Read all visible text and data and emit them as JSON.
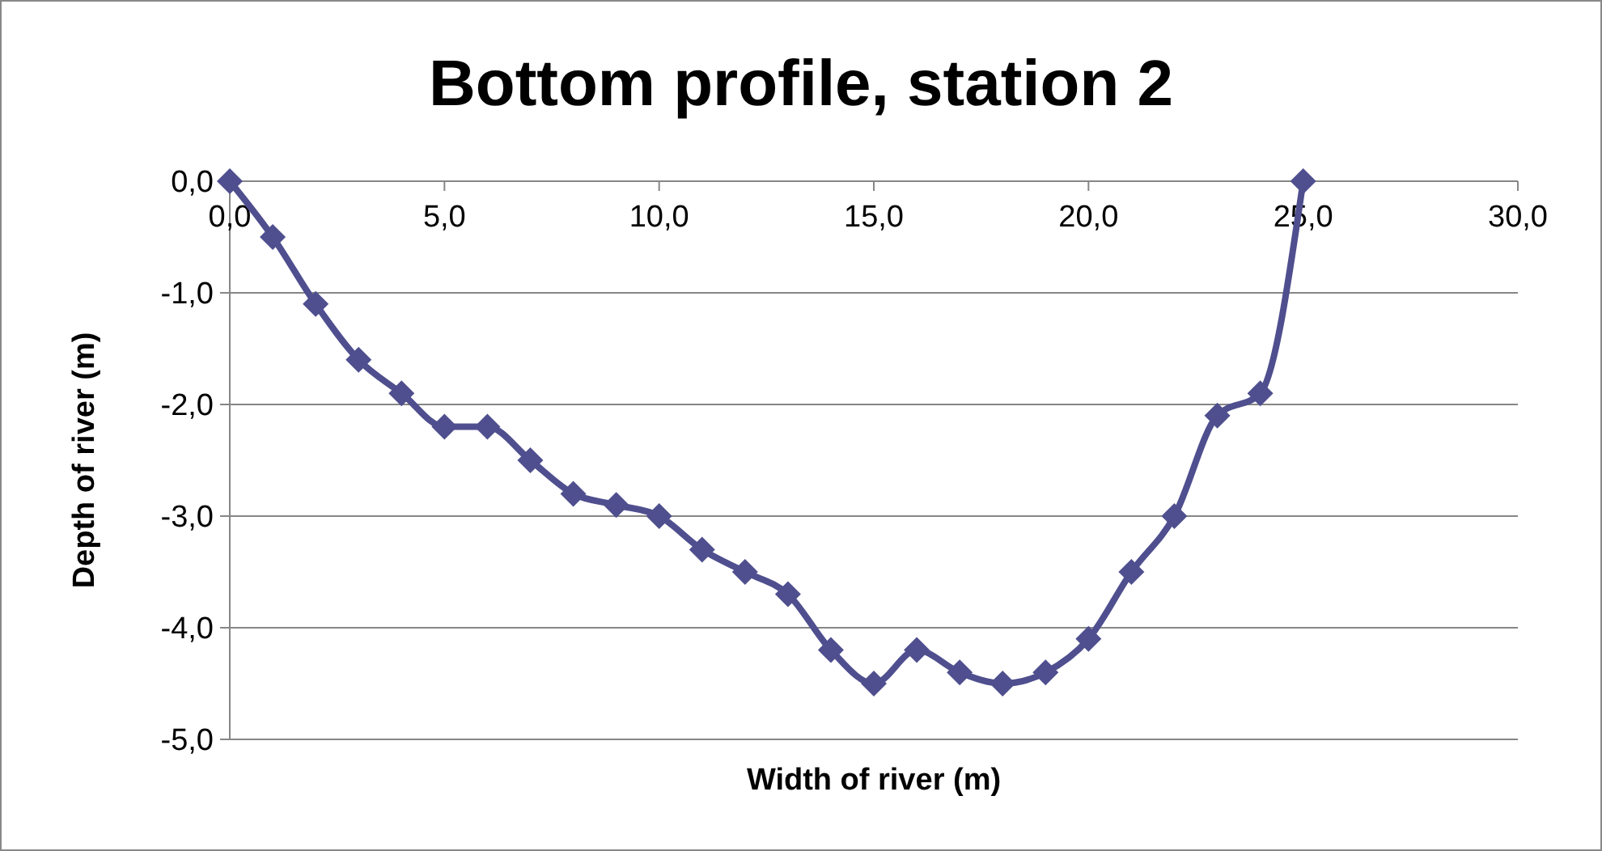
{
  "chart_data": {
    "type": "line",
    "title": "Bottom profile, station 2",
    "xlabel": "Width of river (m)",
    "ylabel": "Depth of river (m)",
    "x": [
      0,
      1,
      2,
      3,
      4,
      5,
      6,
      7,
      8,
      9,
      10,
      11,
      12,
      13,
      14,
      15,
      16,
      17,
      18,
      19,
      20,
      21,
      22,
      23,
      24,
      25
    ],
    "series": [
      {
        "color": "#4f4f8f",
        "values": [
          0,
          -0.5,
          -1.1,
          -1.6,
          -1.9,
          -2.2,
          -2.2,
          -2.5,
          -2.8,
          -2.9,
          -3.0,
          -3.3,
          -3.5,
          -3.7,
          -4.2,
          -4.5,
          -4.2,
          -4.4,
          -4.5,
          -4.4,
          -4.1,
          -3.5,
          -3.0,
          -2.1,
          -1.9,
          0
        ]
      }
    ],
    "xlim": [
      0,
      30
    ],
    "ylim": [
      -5,
      0
    ],
    "xticks": [
      {
        "value": 0,
        "label": "0,0"
      },
      {
        "value": 5,
        "label": "5,0"
      },
      {
        "value": 10,
        "label": "10,0"
      },
      {
        "value": 15,
        "label": "15,0"
      },
      {
        "value": 20,
        "label": "20,0"
      },
      {
        "value": 25,
        "label": "25,0"
      },
      {
        "value": 30,
        "label": "30,0"
      }
    ],
    "yticks": [
      {
        "value": 0,
        "label": "0,0"
      },
      {
        "value": -1,
        "label": "-1,0"
      },
      {
        "value": -2,
        "label": "-2,0"
      },
      {
        "value": -3,
        "label": "-3,0"
      },
      {
        "value": -4,
        "label": "-4,0"
      },
      {
        "value": -5,
        "label": "-5,0"
      }
    ],
    "grid": "y",
    "marker": "diamond",
    "line_style": "solid"
  }
}
